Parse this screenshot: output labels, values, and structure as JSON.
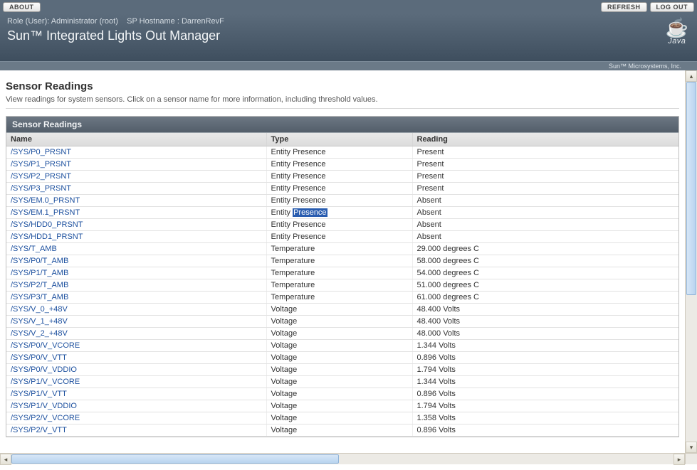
{
  "topbar": {
    "about_label": "ABOUT",
    "refresh_label": "REFRESH",
    "logout_label": "LOG OUT"
  },
  "banner": {
    "role_prefix": "Role (User): ",
    "role_value": "Administrator (root)",
    "host_prefix": "SP Hostname : ",
    "host_value": "DarrenRevF",
    "title": "Sun™ Integrated Lights Out Manager",
    "java_text": "Java",
    "footer": "Sun™ Microsystems, Inc."
  },
  "page": {
    "title": "Sensor Readings",
    "description": "View readings for system sensors. Click on a sensor name for more information, including threshold values."
  },
  "panel": {
    "title": "Sensor Readings",
    "columns": {
      "name": "Name",
      "type": "Type",
      "reading": "Reading"
    },
    "highlight_row_index": 5,
    "highlight_word": "Presence",
    "rows": [
      {
        "name": "/SYS/P0_PRSNT",
        "type": "Entity Presence",
        "reading": "Present"
      },
      {
        "name": "/SYS/P1_PRSNT",
        "type": "Entity Presence",
        "reading": "Present"
      },
      {
        "name": "/SYS/P2_PRSNT",
        "type": "Entity Presence",
        "reading": "Present"
      },
      {
        "name": "/SYS/P3_PRSNT",
        "type": "Entity Presence",
        "reading": "Present"
      },
      {
        "name": "/SYS/EM.0_PRSNT",
        "type": "Entity Presence",
        "reading": "Absent"
      },
      {
        "name": "/SYS/EM.1_PRSNT",
        "type": "Entity Presence",
        "reading": "Absent"
      },
      {
        "name": "/SYS/HDD0_PRSNT",
        "type": "Entity Presence",
        "reading": "Absent"
      },
      {
        "name": "/SYS/HDD1_PRSNT",
        "type": "Entity Presence",
        "reading": "Absent"
      },
      {
        "name": "/SYS/T_AMB",
        "type": "Temperature",
        "reading": "29.000 degrees C"
      },
      {
        "name": "/SYS/P0/T_AMB",
        "type": "Temperature",
        "reading": "58.000 degrees C"
      },
      {
        "name": "/SYS/P1/T_AMB",
        "type": "Temperature",
        "reading": "54.000 degrees C"
      },
      {
        "name": "/SYS/P2/T_AMB",
        "type": "Temperature",
        "reading": "51.000 degrees C"
      },
      {
        "name": "/SYS/P3/T_AMB",
        "type": "Temperature",
        "reading": "61.000 degrees C"
      },
      {
        "name": "/SYS/V_0_+48V",
        "type": "Voltage",
        "reading": "48.400 Volts"
      },
      {
        "name": "/SYS/V_1_+48V",
        "type": "Voltage",
        "reading": "48.400 Volts"
      },
      {
        "name": "/SYS/V_2_+48V",
        "type": "Voltage",
        "reading": "48.000 Volts"
      },
      {
        "name": "/SYS/P0/V_VCORE",
        "type": "Voltage",
        "reading": "1.344 Volts"
      },
      {
        "name": "/SYS/P0/V_VTT",
        "type": "Voltage",
        "reading": "0.896 Volts"
      },
      {
        "name": "/SYS/P0/V_VDDIO",
        "type": "Voltage",
        "reading": "1.794 Volts"
      },
      {
        "name": "/SYS/P1/V_VCORE",
        "type": "Voltage",
        "reading": "1.344 Volts"
      },
      {
        "name": "/SYS/P1/V_VTT",
        "type": "Voltage",
        "reading": "0.896 Volts"
      },
      {
        "name": "/SYS/P1/V_VDDIO",
        "type": "Voltage",
        "reading": "1.794 Volts"
      },
      {
        "name": "/SYS/P2/V_VCORE",
        "type": "Voltage",
        "reading": "1.358 Volts"
      },
      {
        "name": "/SYS/P2/V_VTT",
        "type": "Voltage",
        "reading": "0.896 Volts"
      }
    ]
  }
}
